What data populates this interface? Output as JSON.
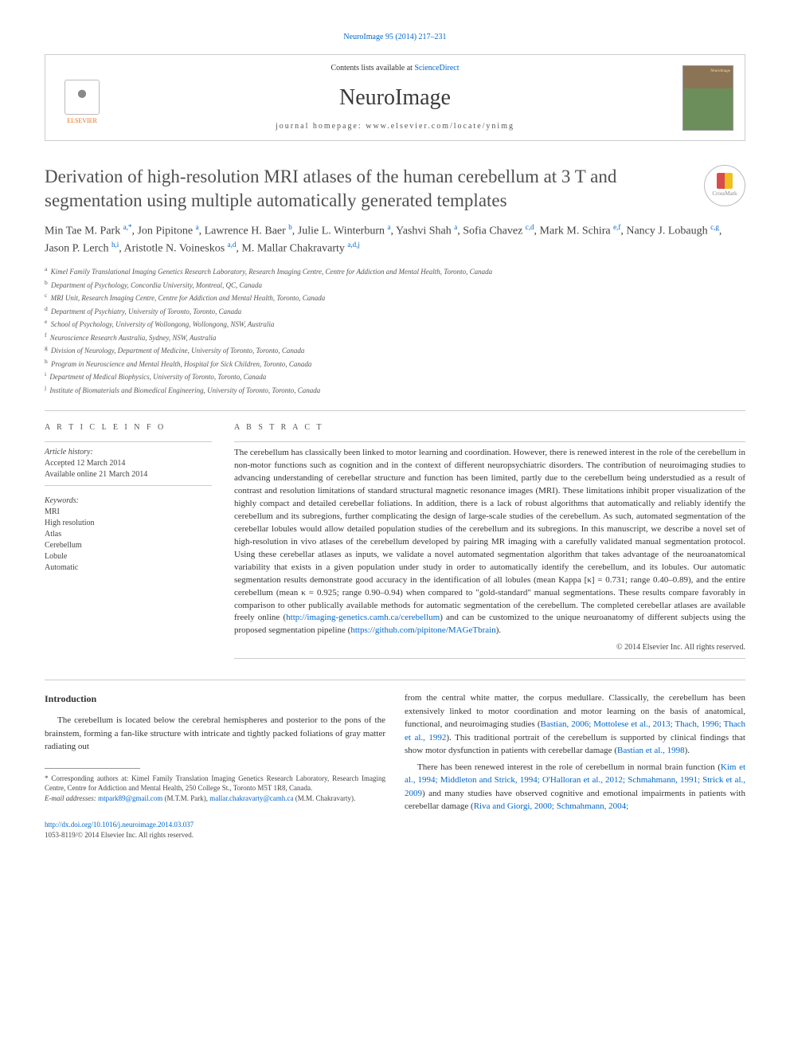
{
  "citation": {
    "journal": "NeuroImage",
    "vol_pages": "95 (2014) 217–231",
    "url_text": "NeuroImage 95 (2014) 217–231"
  },
  "header": {
    "contents_prefix": "Contents lists available at ",
    "contents_link": "ScienceDirect",
    "journal_name": "NeuroImage",
    "homepage_label": "journal homepage: ",
    "homepage": "www.elsevier.com/locate/ynimg",
    "elsevier_label": "ELSEVIER",
    "cover_label": "NeuroImage"
  },
  "crossmark": "CrossMark",
  "title": "Derivation of high-resolution MRI atlases of the human cerebellum at 3 T and segmentation using multiple automatically generated templates",
  "authors": [
    {
      "name": "Min Tae M. Park",
      "aff": "a,*"
    },
    {
      "name": "Jon Pipitone",
      "aff": "a"
    },
    {
      "name": "Lawrence H. Baer",
      "aff": "b"
    },
    {
      "name": "Julie L. Winterburn",
      "aff": "a"
    },
    {
      "name": "Yashvi Shah",
      "aff": "a"
    },
    {
      "name": "Sofia Chavez",
      "aff": "c,d"
    },
    {
      "name": "Mark M. Schira",
      "aff": "e,f"
    },
    {
      "name": "Nancy J. Lobaugh",
      "aff": "c,g"
    },
    {
      "name": "Jason P. Lerch",
      "aff": "h,i"
    },
    {
      "name": "Aristotle N. Voineskos",
      "aff": "a,d"
    },
    {
      "name": "M. Mallar Chakravarty",
      "aff": "a,d,j"
    }
  ],
  "affiliations": [
    {
      "sup": "a",
      "text": "Kimel Family Translational Imaging Genetics Research Laboratory, Research Imaging Centre, Centre for Addiction and Mental Health, Toronto, Canada"
    },
    {
      "sup": "b",
      "text": "Department of Psychology, Concordia University, Montreal, QC, Canada"
    },
    {
      "sup": "c",
      "text": "MRI Unit, Research Imaging Centre, Centre for Addiction and Mental Health, Toronto, Canada"
    },
    {
      "sup": "d",
      "text": "Department of Psychiatry, University of Toronto, Toronto, Canada"
    },
    {
      "sup": "e",
      "text": "School of Psychology, University of Wollongong, Wollongong, NSW, Australia"
    },
    {
      "sup": "f",
      "text": "Neuroscience Research Australia, Sydney, NSW, Australia"
    },
    {
      "sup": "g",
      "text": "Division of Neurology, Department of Medicine, University of Toronto, Toronto, Canada"
    },
    {
      "sup": "h",
      "text": "Program in Neuroscience and Mental Health, Hospital for Sick Children, Toronto, Canada"
    },
    {
      "sup": "i",
      "text": "Department of Medical Biophysics, University of Toronto, Toronto, Canada"
    },
    {
      "sup": "j",
      "text": "Institute of Biomaterials and Biomedical Engineering, University of Toronto, Toronto, Canada"
    }
  ],
  "article_info": {
    "heading": "A R T I C L E   I N F O",
    "history_label": "Article history:",
    "accepted": "Accepted 12 March 2014",
    "online": "Available online 21 March 2014",
    "keywords_label": "Keywords:",
    "keywords": [
      "MRI",
      "High resolution",
      "Atlas",
      "Cerebellum",
      "Lobule",
      "Automatic"
    ]
  },
  "abstract": {
    "heading": "A B S T R A C T",
    "body_1": "The cerebellum has classically been linked to motor learning and coordination. However, there is renewed interest in the role of the cerebellum in non-motor functions such as cognition and in the context of different neuropsychiatric disorders. The contribution of neuroimaging studies to advancing understanding of cerebellar structure and function has been limited, partly due to the cerebellum being understudied as a result of contrast and resolution limitations of standard structural magnetic resonance images (MRI). These limitations inhibit proper visualization of the highly compact and detailed cerebellar foliations. In addition, there is a lack of robust algorithms that automatically and reliably identify the cerebellum and its subregions, further complicating the design of large-scale studies of the cerebellum. As such, automated segmentation of the cerebellar lobules would allow detailed population studies of the cerebellum and its subregions. In this manuscript, we describe a novel set of high-resolution in vivo atlases of the cerebellum developed by pairing MR imaging with a carefully validated manual segmentation protocol. Using these cerebellar atlases as inputs, we validate a novel automated segmentation algorithm that takes advantage of the neuroanatomical variability that exists in a given population under study in order to automatically identify the cerebellum, and its lobules. Our automatic segmentation results demonstrate good accuracy in the identification of all lobules (mean Kappa [κ] = 0.731; range 0.40–0.89), and the entire cerebellum (mean κ = 0.925; range 0.90–0.94) when compared to \"gold-standard\" manual segmentations. These results compare favorably in comparison to other publically available methods for automatic segmentation of the cerebellum. The completed cerebellar atlases are available freely online (",
    "link1": "http://imaging-genetics.camh.ca/cerebellum",
    "body_2": ") and can be customized to the unique neuroanatomy of different subjects using the proposed segmentation pipeline (",
    "link2": "https://github.com/pipitone/MAGeTbrain",
    "body_3": ").",
    "copyright": "© 2014 Elsevier Inc. All rights reserved."
  },
  "intro": {
    "heading": "Introduction",
    "left_p1": "The cerebellum is located below the cerebral hemispheres and posterior to the pons of the brainstem, forming a fan-like structure with intricate and tightly packed foliations of gray matter radiating out",
    "right_p1a": "from the central white matter, the corpus medullare. Classically, the cerebellum has been extensively linked to motor coordination and motor learning on the basis of anatomical, functional, and neuroimaging studies (",
    "right_cite1": "Bastian, 2006; Mottolese et al., 2013; Thach, 1996; Thach et al., 1992",
    "right_p1b": "). This traditional portrait of the cerebellum is supported by clinical findings that show motor dysfunction in patients with cerebellar damage (",
    "right_cite2": "Bastian et al., 1998",
    "right_p1c": ").",
    "right_p2a": "There has been renewed interest in the role of cerebellum in normal brain function (",
    "right_cite3": "Kim et al., 1994; Middleton and Strick, 1994; O'Halloran et al., 2012; Schmahmann, 1991; Strick et al., 2009",
    "right_p2b": ") and many studies have observed cognitive and emotional impairments in patients with cerebellar damage (",
    "right_cite4": "Riva and Giorgi, 2000; Schmahmann, 2004;"
  },
  "footnote": {
    "corr_label": "* Corresponding authors at: Kimel Family Translation Imaging Genetics Research Laboratory, Research Imaging Centre, Centre for Addiction and Mental Health, 250 College St., Toronto M5T 1R8, Canada.",
    "email_label": "E-mail addresses:",
    "email1": "mtpark89@gmail.com",
    "email1_who": " (M.T.M. Park), ",
    "email2": "mallar.chakravarty@camh.ca",
    "email2_who": " (M.M. Chakravarty)."
  },
  "bottom": {
    "doi": "http://dx.doi.org/10.1016/j.neuroimage.2014.03.037",
    "issn_copy": "1053-8119/© 2014 Elsevier Inc. All rights reserved."
  },
  "colors": {
    "link": "#0066cc",
    "text": "#333333",
    "rule": "#cccccc",
    "elsevier": "#e8701a"
  }
}
